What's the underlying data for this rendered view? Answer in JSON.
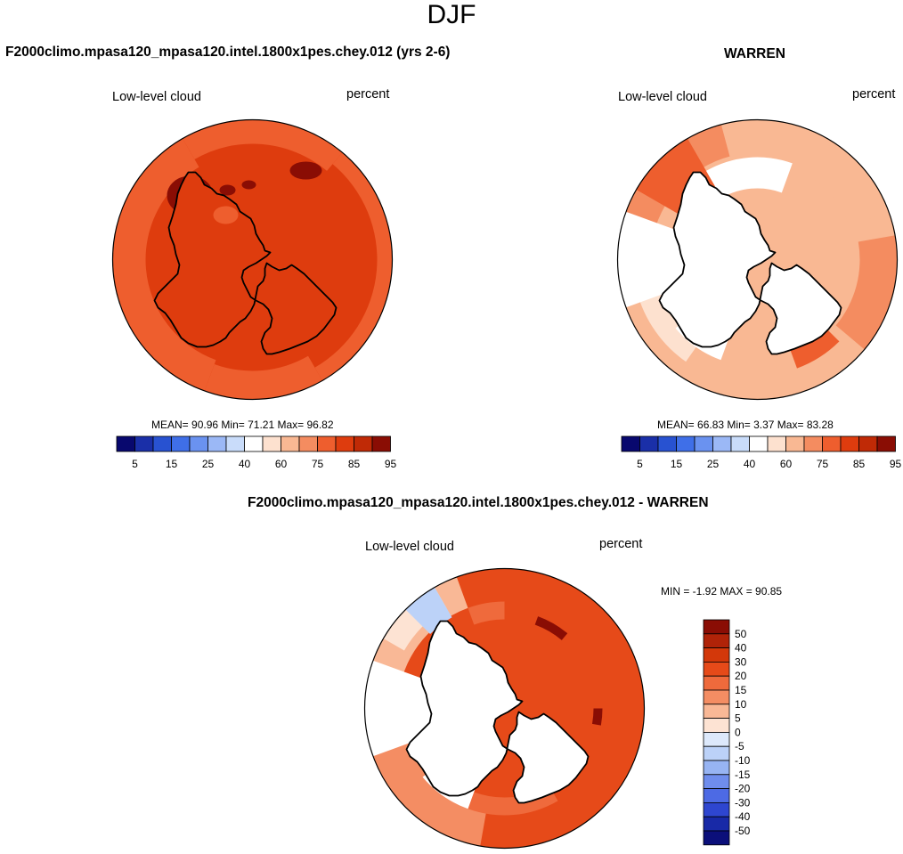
{
  "figure": {
    "season": "DJF",
    "subtitle": "F2000climo.mpasa120_mpasa120.intel.1800x1pes.chey.012 - WARREN"
  },
  "chart_data": [
    {
      "type": "polar-map",
      "title": "F2000climo.mpasa120_mpasa120.intel.1800x1pes.chey.012 (yrs 2-6)",
      "variable": "Low-level cloud",
      "units": "percent",
      "stats": {
        "mean_label": "MEAN=",
        "mean": "90.96",
        "min_label": "Min=",
        "min": "71.21",
        "max_label": "Max=",
        "max": "96.82"
      },
      "levels": [
        5,
        10,
        15,
        20,
        25,
        30,
        40,
        50,
        60,
        70,
        75,
        80,
        85,
        90,
        95
      ],
      "tick_labels": [
        "5",
        "15",
        "25",
        "40",
        "60",
        "75",
        "85",
        "95"
      ]
    },
    {
      "type": "polar-map",
      "title": "WARREN",
      "variable": "Low-level cloud",
      "units": "percent",
      "stats": {
        "mean_label": "MEAN=",
        "mean": "66.83",
        "min_label": "Min=",
        "min": "3.37",
        "max_label": "Max=",
        "max": "83.28"
      },
      "levels": [
        5,
        10,
        15,
        20,
        25,
        30,
        40,
        50,
        60,
        70,
        75,
        80,
        85,
        90,
        95
      ],
      "tick_labels": [
        "5",
        "15",
        "25",
        "40",
        "60",
        "75",
        "85",
        "95"
      ]
    },
    {
      "type": "polar-map",
      "title": "F2000climo.mpasa120_mpasa120.intel.1800x1pes.chey.012 - WARREN",
      "variable": "Low-level cloud",
      "units": "percent",
      "stats": {
        "text": "MIN =  -1.92 MAX =  90.85",
        "min": -1.92,
        "max": 90.85
      },
      "diff_levels": [
        50,
        40,
        30,
        20,
        15,
        10,
        5,
        0,
        -5,
        -10,
        -15,
        -20,
        -30,
        -40,
        -50
      ]
    }
  ],
  "colors": {
    "seq_palette": [
      "#08086e",
      "#1a2fa8",
      "#2852d1",
      "#3f6fe8",
      "#6a92f0",
      "#9bb8f6",
      "#c9dcfa",
      "#ffffff",
      "#fde1cf",
      "#f9b893",
      "#f48c60",
      "#ee5e2e",
      "#de3c0e",
      "#c02a06",
      "#8a0d04"
    ],
    "diff_palette": [
      "#8a0d04",
      "#b02308",
      "#d3380a",
      "#e64a19",
      "#ef6a3c",
      "#f48d63",
      "#f9b896",
      "#fde3d3",
      "#dde9fb",
      "#bcd2f8",
      "#97b4f3",
      "#6f8ded",
      "#4d6ae4",
      "#2e46d0",
      "#1829a7",
      "#0b0f7a"
    ],
    "land": "#ffffff",
    "coast": "#000000"
  }
}
